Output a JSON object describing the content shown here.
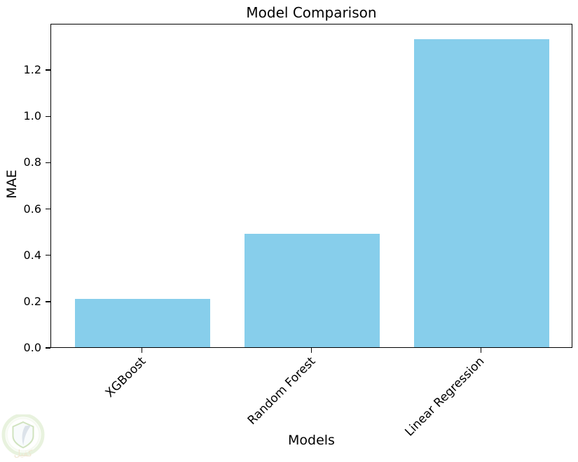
{
  "chart_data": {
    "type": "bar",
    "title": "Model Comparison",
    "xlabel": "Models",
    "ylabel": "MAE",
    "categories": [
      "XGBoost",
      "Random Forest",
      "Linear Regression"
    ],
    "values": [
      0.21,
      0.49,
      1.33
    ],
    "yticks": [
      0.0,
      0.2,
      0.4,
      0.6,
      0.8,
      1.0,
      1.2
    ],
    "ylim": [
      0,
      1.4
    ],
    "xlim": [
      -0.54,
      2.54
    ],
    "bar_width_data_units": 0.8,
    "bar_color": "#87CEEB",
    "spine_color": "#000000",
    "background_color": "#ffffff",
    "grid": false,
    "legend": null,
    "xtick_label_rotation_deg": 45
  },
  "watermark": {
    "text": "كفيل"
  }
}
